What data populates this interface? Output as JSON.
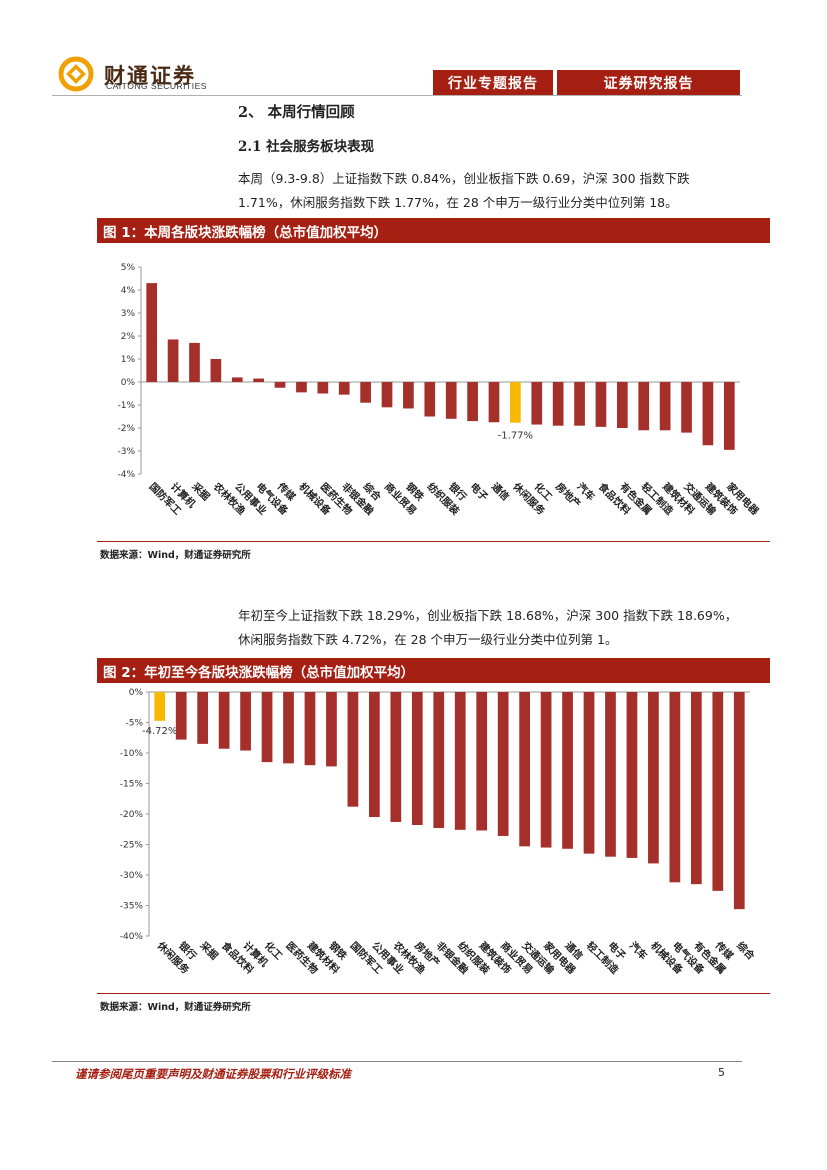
{
  "header": {
    "brand": "财通证券",
    "brand_en": "CAITONG SECURITIES",
    "tag_left": "行业专题报告",
    "tag_right": "证券研究报告",
    "accent_color": "#a51f12"
  },
  "section": {
    "title": "2、 本周行情回顾",
    "subtitle": "2.1  社会服务板块表现",
    "para1": "本周（9.3-9.8）上证指数下跌 0.84%，创业板指下跌 0.69，沪深 300 指数下跌 1.71%，休闲服务指数下跌 1.77%，在 28 个申万一级行业分类中位列第 18。",
    "para2": "年初至今上证指数下跌 18.29%，创业板指下跌 18.68%，沪深 300 指数下跌 18.69%，休闲服务指数下跌 4.72%，在 28 个申万一级行业分类中位列第 1。"
  },
  "figure1": {
    "caption": "图 1：本周各版块涨跌幅榜（总市值加权平均）",
    "source": "数据来源：Wind，财通证券研究所"
  },
  "figure2": {
    "caption": "图 2：年初至今各版块涨跌幅榜（总市值加权平均）",
    "source": "数据来源：Wind，财通证券研究所"
  },
  "chart_data": [
    {
      "type": "bar",
      "title": "图 1：本周各版块涨跌幅榜（总市值加权平均）",
      "categories": [
        "国防军工",
        "计算机",
        "采掘",
        "农林牧渔",
        "公用事业",
        "电气设备",
        "传媒",
        "机械设备",
        "医药生物",
        "非银金融",
        "综合",
        "商业贸易",
        "钢铁",
        "纺织服装",
        "银行",
        "电子",
        "通信",
        "休闲服务",
        "化工",
        "房地产",
        "汽车",
        "食品饮料",
        "有色金属",
        "轻工制造",
        "建筑材料",
        "交通运输",
        "建筑装饰",
        "家用电器"
      ],
      "values": [
        4.3,
        1.85,
        1.7,
        1.0,
        0.2,
        0.15,
        -0.25,
        -0.45,
        -0.5,
        -0.55,
        -0.9,
        -1.1,
        -1.15,
        -1.5,
        -1.6,
        -1.7,
        -1.75,
        -1.77,
        -1.85,
        -1.9,
        -1.9,
        -1.95,
        -2.0,
        -2.1,
        -2.1,
        -2.2,
        -2.75,
        -2.95
      ],
      "highlight_index": 17,
      "highlight_label": "-1.77%",
      "ylim": [
        -4,
        5
      ],
      "yticks": [
        5,
        4,
        3,
        2,
        1,
        0,
        -1,
        -2,
        -3,
        -4
      ],
      "ytick_labels": [
        "5%",
        "4%",
        "3%",
        "2%",
        "1%",
        "0%",
        "-1%",
        "-2%",
        "-3%",
        "-4%"
      ],
      "bar_color": "#a5302b",
      "highlight_color": "#f6b800"
    },
    {
      "type": "bar",
      "title": "图 2：年初至今各版块涨跌幅榜（总市值加权平均）",
      "categories": [
        "休闲服务",
        "银行",
        "采掘",
        "食品饮料",
        "计算机",
        "化工",
        "医药生物",
        "建筑材料",
        "钢铁",
        "国防军工",
        "公用事业",
        "农林牧渔",
        "房地产",
        "非银金融",
        "纺织服装",
        "建筑装饰",
        "商业贸易",
        "交通运输",
        "家用电器",
        "通信",
        "轻工制造",
        "电子",
        "汽车",
        "机械设备",
        "电气设备",
        "有色金属",
        "传媒",
        "综合"
      ],
      "values": [
        -4.72,
        -7.8,
        -8.5,
        -9.3,
        -9.6,
        -11.5,
        -11.7,
        -12.0,
        -12.2,
        -18.8,
        -20.5,
        -21.3,
        -21.8,
        -22.3,
        -22.6,
        -22.7,
        -23.6,
        -25.3,
        -25.5,
        -25.7,
        -26.5,
        -27.0,
        -27.2,
        -28.1,
        -31.2,
        -31.5,
        -32.6,
        -35.6
      ],
      "highlight_index": 0,
      "highlight_label": "-4.72%",
      "ylim": [
        -40,
        0
      ],
      "yticks": [
        0,
        -5,
        -10,
        -15,
        -20,
        -25,
        -30,
        -35,
        -40
      ],
      "ytick_labels": [
        "0%",
        "-5%",
        "-10%",
        "-15%",
        "-20%",
        "-25%",
        "-30%",
        "-35%",
        "-40%"
      ],
      "bar_color": "#a5302b",
      "highlight_color": "#f6b800"
    }
  ],
  "footer": {
    "disclaimer": "谨请参阅尾页重要声明及财通证券股票和行业评级标准",
    "page": "5"
  }
}
